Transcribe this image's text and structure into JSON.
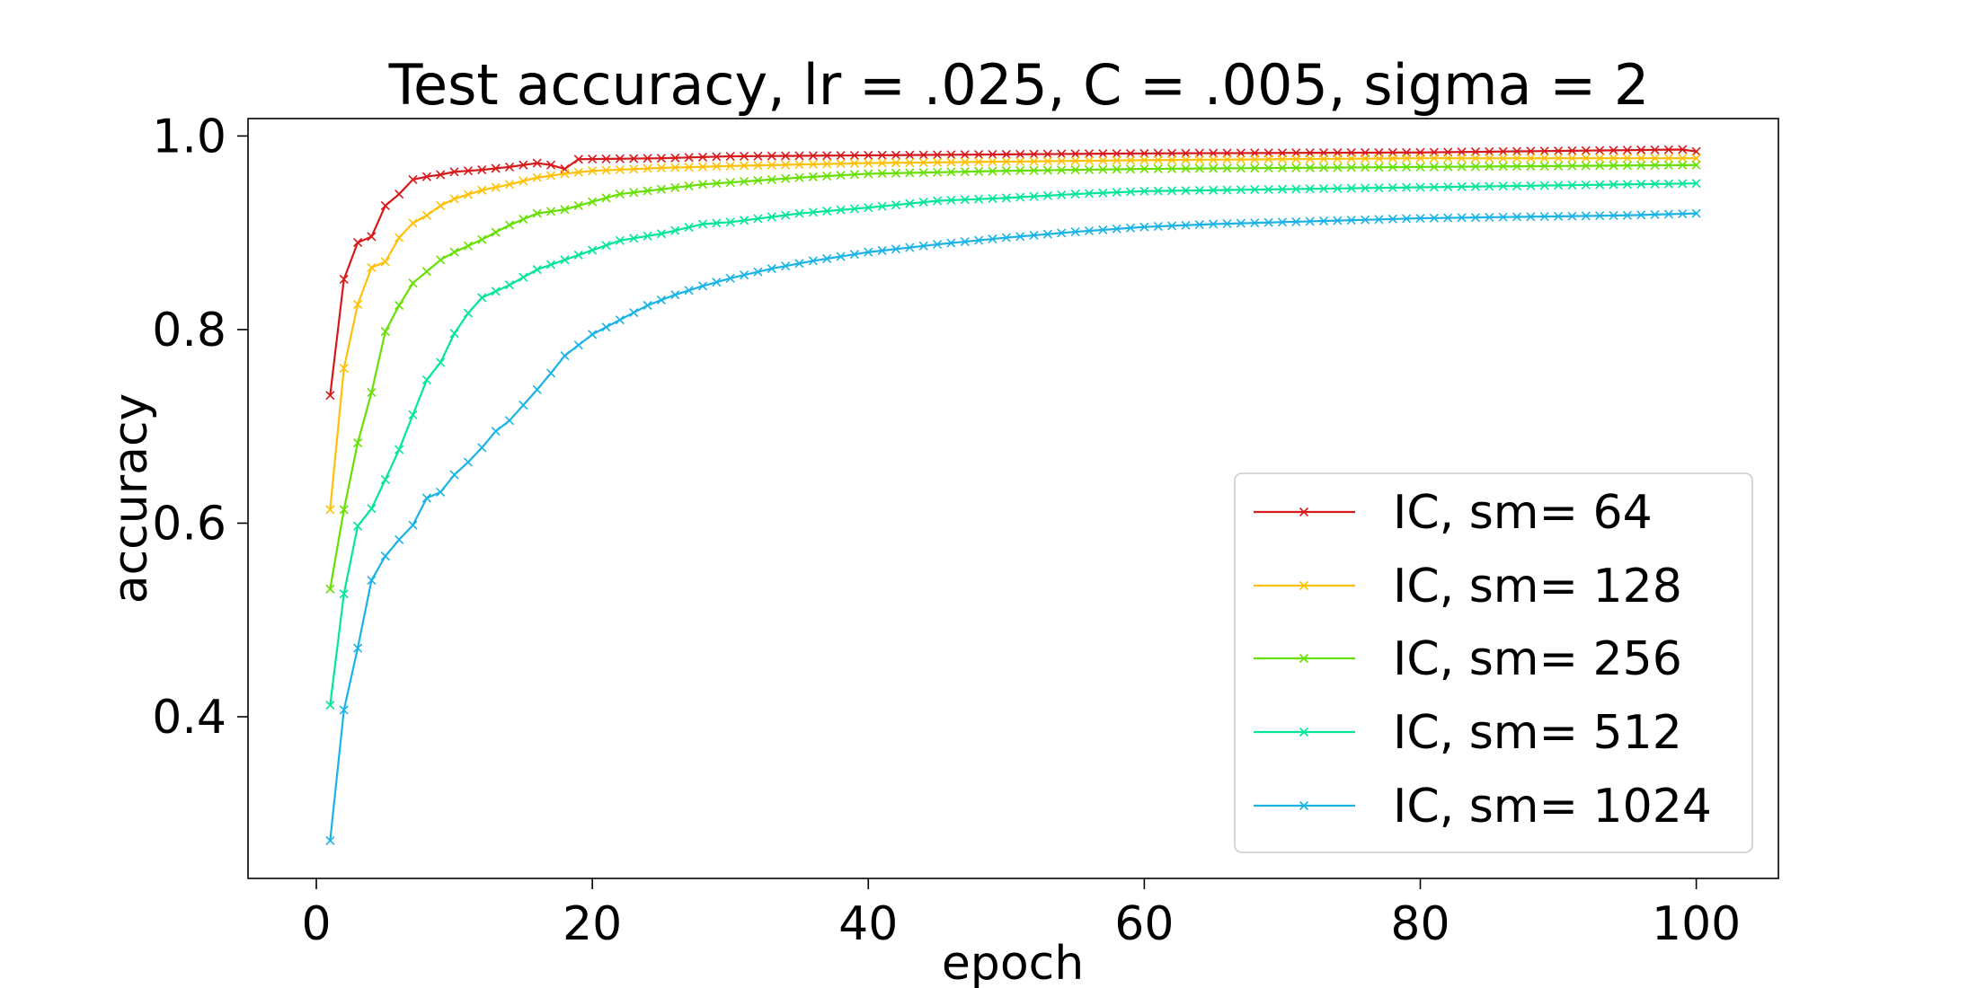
{
  "chart_data": {
    "type": "line",
    "title": "Test accuracy, lr = .025, C = .005, sigma = 2",
    "xlabel": "epoch",
    "ylabel": "accuracy",
    "xlim": [
      -4.95,
      105.95
    ],
    "ylim": [
      0.233,
      1.018
    ],
    "xticks": [
      0,
      20,
      40,
      60,
      80,
      100
    ],
    "yticks": [
      0.4,
      0.6,
      0.8,
      1.0
    ],
    "xtick_labels": [
      "0",
      "20",
      "40",
      "60",
      "80",
      "100"
    ],
    "ytick_labels": [
      "0.4",
      "0.6",
      "0.8",
      "1.0"
    ],
    "grid": false,
    "legend_position": "lower-right",
    "marker": "x",
    "series": [
      {
        "name": "IC, sm= 64",
        "color": "#d7191c",
        "anchors": [
          [
            1,
            0.732
          ],
          [
            2,
            0.852
          ],
          [
            3,
            0.89
          ],
          [
            4,
            0.896
          ],
          [
            5,
            0.928
          ],
          [
            6,
            0.94
          ],
          [
            7,
            0.955
          ],
          [
            8,
            0.958
          ],
          [
            9,
            0.96
          ],
          [
            10,
            0.963
          ],
          [
            12,
            0.965
          ],
          [
            14,
            0.968
          ],
          [
            16,
            0.972
          ],
          [
            17,
            0.97
          ],
          [
            18,
            0.966
          ],
          [
            19,
            0.976
          ],
          [
            25,
            0.977
          ],
          [
            30,
            0.979
          ],
          [
            40,
            0.98
          ],
          [
            50,
            0.981
          ],
          [
            60,
            0.982
          ],
          [
            80,
            0.983
          ],
          [
            99,
            0.986
          ],
          [
            100,
            0.984
          ]
        ]
      },
      {
        "name": "IC, sm= 128",
        "color": "#ffc107",
        "anchors": [
          [
            1,
            0.614
          ],
          [
            2,
            0.76
          ],
          [
            3,
            0.826
          ],
          [
            4,
            0.864
          ],
          [
            5,
            0.87
          ],
          [
            6,
            0.895
          ],
          [
            7,
            0.91
          ],
          [
            8,
            0.918
          ],
          [
            9,
            0.928
          ],
          [
            10,
            0.935
          ],
          [
            12,
            0.944
          ],
          [
            14,
            0.95
          ],
          [
            16,
            0.957
          ],
          [
            18,
            0.961
          ],
          [
            20,
            0.964
          ],
          [
            25,
            0.967
          ],
          [
            30,
            0.969
          ],
          [
            40,
            0.972
          ],
          [
            60,
            0.975
          ],
          [
            80,
            0.977
          ],
          [
            100,
            0.977
          ]
        ]
      },
      {
        "name": "IC, sm= 256",
        "color": "#66e000",
        "anchors": [
          [
            1,
            0.532
          ],
          [
            2,
            0.614
          ],
          [
            3,
            0.683
          ],
          [
            4,
            0.735
          ],
          [
            5,
            0.798
          ],
          [
            6,
            0.825
          ],
          [
            7,
            0.848
          ],
          [
            8,
            0.86
          ],
          [
            9,
            0.872
          ],
          [
            10,
            0.88
          ],
          [
            12,
            0.893
          ],
          [
            14,
            0.908
          ],
          [
            16,
            0.92
          ],
          [
            18,
            0.924
          ],
          [
            20,
            0.932
          ],
          [
            22,
            0.94
          ],
          [
            25,
            0.945
          ],
          [
            28,
            0.95
          ],
          [
            31,
            0.953
          ],
          [
            35,
            0.957
          ],
          [
            40,
            0.961
          ],
          [
            50,
            0.964
          ],
          [
            60,
            0.966
          ],
          [
            80,
            0.968
          ],
          [
            100,
            0.97
          ]
        ]
      },
      {
        "name": "IC, sm= 512",
        "color": "#00e69a",
        "anchors": [
          [
            1,
            0.412
          ],
          [
            2,
            0.527
          ],
          [
            3,
            0.597
          ],
          [
            4,
            0.615
          ],
          [
            5,
            0.645
          ],
          [
            6,
            0.676
          ],
          [
            7,
            0.712
          ],
          [
            8,
            0.748
          ],
          [
            9,
            0.766
          ],
          [
            10,
            0.796
          ],
          [
            11,
            0.817
          ],
          [
            12,
            0.833
          ],
          [
            14,
            0.846
          ],
          [
            16,
            0.862
          ],
          [
            18,
            0.872
          ],
          [
            20,
            0.882
          ],
          [
            22,
            0.892
          ],
          [
            25,
            0.899
          ],
          [
            28,
            0.909
          ],
          [
            30,
            0.911
          ],
          [
            35,
            0.92
          ],
          [
            40,
            0.926
          ],
          [
            45,
            0.933
          ],
          [
            50,
            0.936
          ],
          [
            55,
            0.94
          ],
          [
            60,
            0.943
          ],
          [
            70,
            0.945
          ],
          [
            80,
            0.947
          ],
          [
            90,
            0.949
          ],
          [
            100,
            0.951
          ]
        ]
      },
      {
        "name": "IC, sm= 1024",
        "color": "#1ab3e6",
        "anchors": [
          [
            1,
            0.272
          ],
          [
            2,
            0.407
          ],
          [
            3,
            0.471
          ],
          [
            4,
            0.541
          ],
          [
            5,
            0.566
          ],
          [
            6,
            0.583
          ],
          [
            7,
            0.598
          ],
          [
            8,
            0.626
          ],
          [
            9,
            0.632
          ],
          [
            10,
            0.65
          ],
          [
            11,
            0.663
          ],
          [
            12,
            0.678
          ],
          [
            13,
            0.695
          ],
          [
            14,
            0.706
          ],
          [
            15,
            0.722
          ],
          [
            16,
            0.738
          ],
          [
            17,
            0.755
          ],
          [
            18,
            0.773
          ],
          [
            20,
            0.795
          ],
          [
            22,
            0.81
          ],
          [
            24,
            0.825
          ],
          [
            26,
            0.836
          ],
          [
            28,
            0.845
          ],
          [
            30,
            0.853
          ],
          [
            33,
            0.863
          ],
          [
            36,
            0.871
          ],
          [
            40,
            0.88
          ],
          [
            45,
            0.888
          ],
          [
            50,
            0.895
          ],
          [
            55,
            0.901
          ],
          [
            60,
            0.906
          ],
          [
            65,
            0.909
          ],
          [
            70,
            0.911
          ],
          [
            75,
            0.913
          ],
          [
            80,
            0.915
          ],
          [
            85,
            0.916
          ],
          [
            90,
            0.917
          ],
          [
            95,
            0.918
          ],
          [
            100,
            0.92
          ]
        ]
      }
    ]
  }
}
